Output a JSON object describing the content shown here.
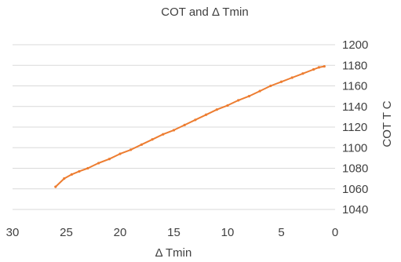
{
  "chart_data": {
    "type": "line",
    "title": "COT and Δ Tmin",
    "xlabel": "Δ Tmin",
    "ylabel": "COT T C",
    "x_reversed": true,
    "xlim": [
      30,
      0
    ],
    "ylim": [
      1040,
      1200
    ],
    "x_ticks": [
      30,
      25,
      20,
      15,
      10,
      5,
      0
    ],
    "y_ticks": [
      1040,
      1060,
      1080,
      1100,
      1120,
      1140,
      1160,
      1180,
      1200
    ],
    "y_axis_side": "right",
    "grid": "horizontal",
    "legend": "none",
    "series": [
      {
        "color": "#ED7D31",
        "points": [
          [
            26,
            1062
          ],
          [
            25.2,
            1070
          ],
          [
            24.5,
            1074
          ],
          [
            23.8,
            1077
          ],
          [
            23,
            1080
          ],
          [
            22,
            1085
          ],
          [
            21,
            1089
          ],
          [
            20,
            1094
          ],
          [
            19,
            1098
          ],
          [
            18,
            1103
          ],
          [
            17,
            1108
          ],
          [
            16,
            1113
          ],
          [
            15,
            1117
          ],
          [
            14,
            1122
          ],
          [
            13,
            1127
          ],
          [
            12,
            1132
          ],
          [
            11,
            1137
          ],
          [
            10,
            1141
          ],
          [
            9,
            1146
          ],
          [
            8,
            1150
          ],
          [
            7,
            1155
          ],
          [
            6,
            1160
          ],
          [
            5,
            1164
          ],
          [
            4,
            1168
          ],
          [
            3,
            1172
          ],
          [
            2,
            1176
          ],
          [
            1.5,
            1178
          ],
          [
            1,
            1179
          ]
        ]
      }
    ]
  }
}
